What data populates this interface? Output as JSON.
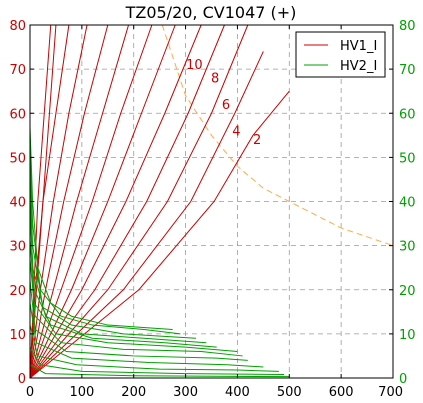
{
  "chart_data": {
    "type": "line",
    "title": "TZ05/20, CV1047 (+)",
    "xlim": [
      0,
      700
    ],
    "ylim": [
      0,
      80
    ],
    "xticks": [
      0,
      100,
      200,
      300,
      400,
      500,
      600,
      700
    ],
    "yticks": [
      0,
      10,
      20,
      30,
      40,
      50,
      60,
      70,
      80
    ],
    "grid": true,
    "legend_placement": "top-right",
    "legend": [
      {
        "label": "HV1_I",
        "color": "#cc0000"
      },
      {
        "label": "HV2_I",
        "color": "#00a000"
      }
    ],
    "hv1_color": "#cc0000",
    "hv2_color": "#00a000",
    "limit_color": "#ffaa44",
    "curve_labels": [
      {
        "text": "10",
        "x": 317,
        "y": 70
      },
      {
        "text": "8",
        "x": 357,
        "y": 67
      },
      {
        "text": "6",
        "x": 378,
        "y": 61
      },
      {
        "text": "4",
        "x": 398,
        "y": 55
      },
      {
        "text": "2",
        "x": 438,
        "y": 53
      }
    ],
    "series": [
      {
        "group": "HV1",
        "points": [
          [
            0,
            0
          ],
          [
            50,
            80
          ]
        ]
      },
      {
        "group": "HV1",
        "points": [
          [
            0,
            0
          ],
          [
            15,
            40
          ],
          [
            40,
            80
          ]
        ]
      },
      {
        "group": "HV1",
        "points": [
          [
            0,
            0
          ],
          [
            10,
            20
          ],
          [
            25,
            40
          ],
          [
            50,
            60
          ],
          [
            75,
            80
          ]
        ]
      },
      {
        "group": "HV1",
        "points": [
          [
            0,
            0
          ],
          [
            20,
            20
          ],
          [
            45,
            40
          ],
          [
            75,
            60
          ],
          [
            110,
            80
          ]
        ]
      },
      {
        "group": "HV1",
        "points": [
          [
            0,
            0
          ],
          [
            30,
            20
          ],
          [
            65,
            40
          ],
          [
            105,
            60
          ],
          [
            150,
            80
          ]
        ]
      },
      {
        "group": "HV1",
        "points": [
          [
            0,
            0
          ],
          [
            45,
            20
          ],
          [
            90,
            40
          ],
          [
            140,
            60
          ],
          [
            190,
            80
          ]
        ]
      },
      {
        "group": "HV1",
        "points": [
          [
            0,
            0
          ],
          [
            60,
            20
          ],
          [
            120,
            40
          ],
          [
            175,
            60
          ],
          [
            235,
            80
          ]
        ]
      },
      {
        "group": "HV1",
        "points": [
          [
            0,
            0
          ],
          [
            80,
            20
          ],
          [
            150,
            40
          ],
          [
            215,
            60
          ],
          [
            280,
            80
          ]
        ]
      },
      {
        "group": "HV1",
        "points": [
          [
            0,
            0
          ],
          [
            100,
            20
          ],
          [
            185,
            40
          ],
          [
            260,
            60
          ],
          [
            330,
            80
          ]
        ]
      },
      {
        "group": "HV1",
        "points": [
          [
            0,
            0
          ],
          [
            125,
            20
          ],
          [
            225,
            40
          ],
          [
            305,
            60
          ],
          [
            375,
            80
          ]
        ]
      },
      {
        "group": "HV1",
        "points": [
          [
            0,
            0
          ],
          [
            150,
            20
          ],
          [
            265,
            40
          ],
          [
            350,
            60
          ],
          [
            420,
            80
          ]
        ]
      },
      {
        "group": "HV1",
        "points": [
          [
            0,
            0
          ],
          [
            180,
            20
          ],
          [
            310,
            40
          ],
          [
            395,
            60
          ],
          [
            450,
            74
          ]
        ]
      },
      {
        "group": "HV1",
        "points": [
          [
            0,
            0
          ],
          [
            210,
            20
          ],
          [
            355,
            40
          ],
          [
            430,
            55
          ],
          [
            500,
            65
          ]
        ]
      },
      {
        "group": "HV2",
        "points": [
          [
            0,
            57
          ],
          [
            5,
            40
          ],
          [
            15,
            25
          ],
          [
            40,
            17
          ],
          [
            80,
            14
          ],
          [
            150,
            12
          ],
          [
            275,
            11
          ]
        ]
      },
      {
        "group": "HV2",
        "points": [
          [
            0,
            53
          ],
          [
            5,
            35
          ],
          [
            20,
            20
          ],
          [
            60,
            14
          ],
          [
            120,
            12
          ],
          [
            220,
            11
          ],
          [
            290,
            10
          ]
        ]
      },
      {
        "group": "HV2",
        "points": [
          [
            0,
            48
          ],
          [
            5,
            30
          ],
          [
            25,
            16
          ],
          [
            80,
            12
          ],
          [
            180,
            10
          ],
          [
            320,
            9
          ]
        ]
      },
      {
        "group": "HV2",
        "points": [
          [
            0,
            42
          ],
          [
            5,
            25
          ],
          [
            30,
            14
          ],
          [
            100,
            10
          ],
          [
            220,
            9
          ],
          [
            340,
            8
          ]
        ]
      },
      {
        "group": "HV2",
        "points": [
          [
            0,
            37
          ],
          [
            8,
            20
          ],
          [
            40,
            12
          ],
          [
            120,
            9
          ],
          [
            260,
            8
          ],
          [
            360,
            7
          ]
        ]
      },
      {
        "group": "HV2",
        "points": [
          [
            0,
            32
          ],
          [
            8,
            17
          ],
          [
            50,
            10
          ],
          [
            150,
            8
          ],
          [
            300,
            7
          ],
          [
            400,
            6
          ]
        ]
      },
      {
        "group": "HV2",
        "points": [
          [
            0,
            27
          ],
          [
            10,
            14
          ],
          [
            60,
            8
          ],
          [
            180,
            6.5
          ],
          [
            330,
            6
          ],
          [
            410,
            5
          ]
        ]
      },
      {
        "group": "HV2",
        "points": [
          [
            0,
            22
          ],
          [
            10,
            11
          ],
          [
            70,
            6
          ],
          [
            200,
            5
          ],
          [
            360,
            4.5
          ],
          [
            420,
            4
          ]
        ]
      },
      {
        "group": "HV2",
        "points": [
          [
            0,
            17
          ],
          [
            12,
            8
          ],
          [
            80,
            4.5
          ],
          [
            230,
            3.5
          ],
          [
            380,
            3
          ],
          [
            450,
            2.5
          ]
        ]
      },
      {
        "group": "HV2",
        "points": [
          [
            0,
            12
          ],
          [
            15,
            5
          ],
          [
            90,
            3
          ],
          [
            250,
            2
          ],
          [
            400,
            1.8
          ],
          [
            480,
            1.5
          ]
        ]
      },
      {
        "group": "HV2",
        "points": [
          [
            0,
            7
          ],
          [
            20,
            3
          ],
          [
            100,
            1.5
          ],
          [
            300,
            1
          ],
          [
            490,
            0.8
          ]
        ]
      },
      {
        "group": "HV2",
        "points": [
          [
            0,
            3
          ],
          [
            30,
            1
          ],
          [
            200,
            0.5
          ],
          [
            500,
            0.3
          ]
        ]
      }
    ],
    "limit_curve": [
      [
        255,
        80
      ],
      [
        300,
        64
      ],
      [
        350,
        55
      ],
      [
        400,
        48
      ],
      [
        450,
        43
      ],
      [
        500,
        40
      ],
      [
        550,
        37
      ],
      [
        600,
        34
      ],
      [
        650,
        32
      ],
      [
        700,
        30
      ]
    ]
  }
}
